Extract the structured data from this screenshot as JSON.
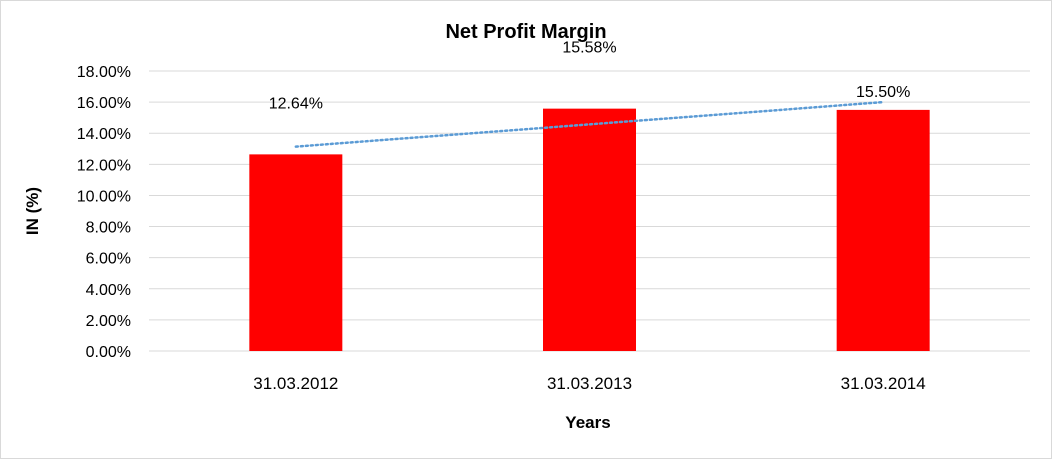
{
  "chart_data": {
    "type": "bar",
    "title": "Net Profit Margin",
    "xlabel": "Years",
    "ylabel": "IN (%)",
    "categories": [
      "31.03.2012",
      "31.03.2013",
      "31.03.2014"
    ],
    "values": [
      12.64,
      15.58,
      15.5
    ],
    "data_labels": [
      "12.64%",
      "15.58%",
      "15.50%"
    ],
    "ylim": [
      0,
      18
    ],
    "yticks": [
      0,
      2,
      4,
      6,
      8,
      10,
      12,
      14,
      16,
      18
    ],
    "ytick_labels": [
      "0.00%",
      "2.00%",
      "4.00%",
      "6.00%",
      "8.00%",
      "10.00%",
      "12.00%",
      "14.00%",
      "16.00%",
      "18.00%"
    ],
    "grid": true,
    "legend": "none",
    "trendline": {
      "type": "linear",
      "start": 13.14,
      "end": 16.0
    },
    "colors": {
      "bar": "#FF0000",
      "trendline": "#5B9BD5",
      "grid": "#D9D9D9"
    }
  }
}
